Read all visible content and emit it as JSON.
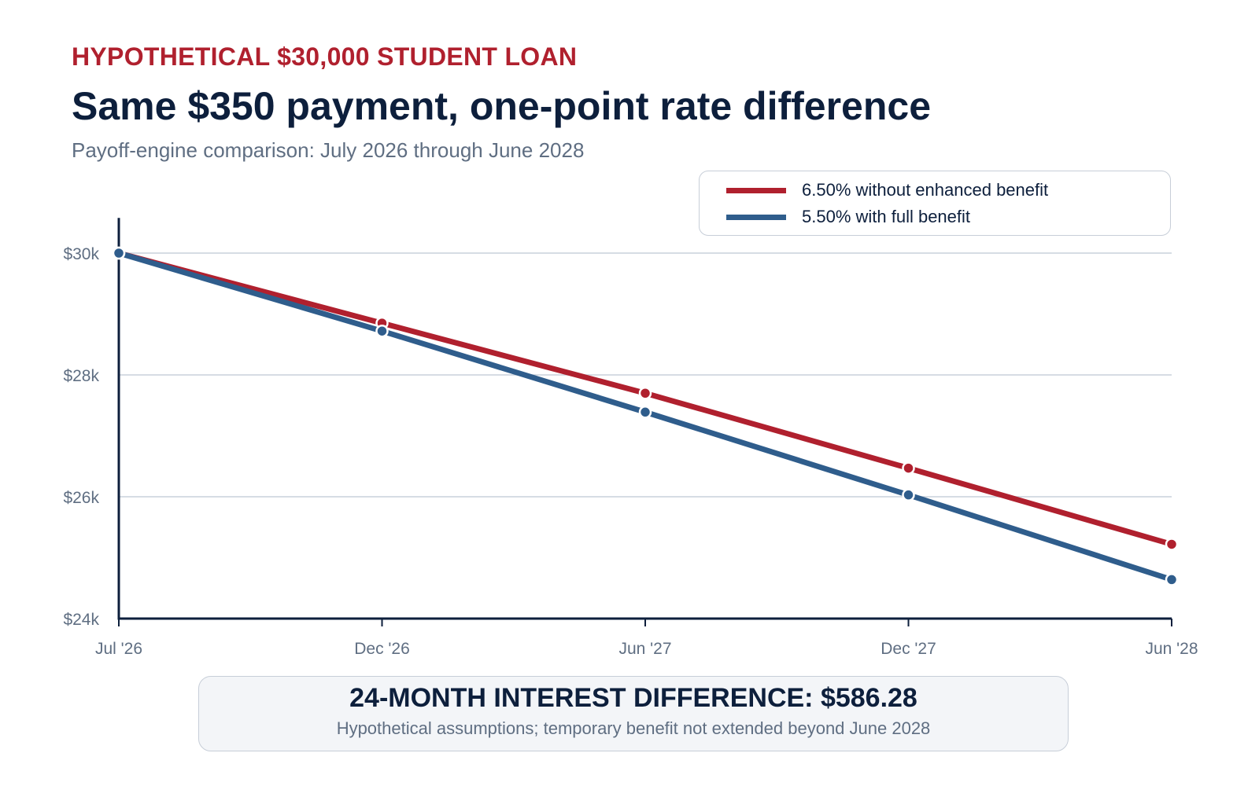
{
  "header": {
    "kicker": "HYPOTHETICAL $30,000 STUDENT LOAN",
    "title": "Same $350 payment, one-point rate difference",
    "subtitle": "Payoff-engine comparison: July 2026 through June 2028"
  },
  "chart_data": {
    "type": "line",
    "categories": [
      "Jul '26",
      "Dec '26",
      "Jun '27",
      "Dec '27",
      "Jun '28"
    ],
    "series": [
      {
        "name": "6.50% without enhanced benefit",
        "color": "#b0202e",
        "values": [
          30000,
          28850,
          27700,
          26470,
          25220
        ]
      },
      {
        "name": "5.50% with full benefit",
        "color": "#2f5d8c",
        "values": [
          30000,
          28720,
          27390,
          26030,
          24640
        ]
      }
    ],
    "yticks": [
      30000,
      28000,
      26000,
      24000
    ],
    "ytick_labels": [
      "$30k",
      "$28k",
      "$26k",
      "$24k"
    ],
    "ylim": [
      24000,
      30500
    ],
    "grid": true,
    "legend_position": "top-right"
  },
  "footer": {
    "headline": "24-MONTH INTEREST DIFFERENCE: $586.28",
    "note": "Hypothetical assumptions; temporary benefit not extended beyond June 2028"
  }
}
